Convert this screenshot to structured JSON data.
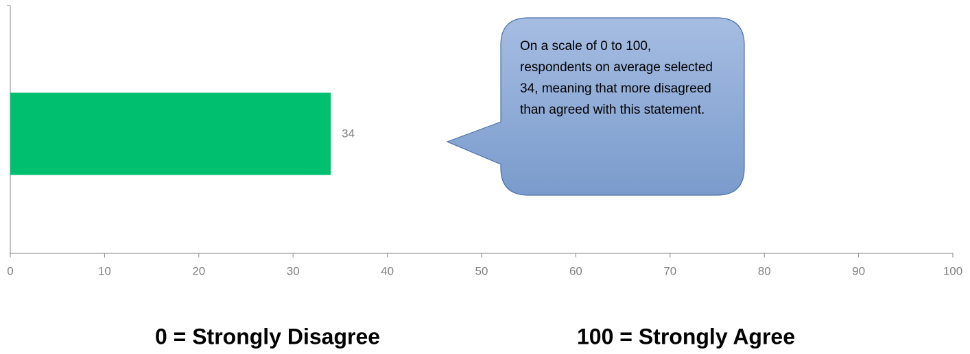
{
  "chart_data": {
    "type": "bar",
    "orientation": "horizontal",
    "categories": [
      null
    ],
    "values": [
      34
    ],
    "color": "#00bf6f",
    "xlim": [
      0,
      100
    ],
    "xticks": [
      0,
      10,
      20,
      30,
      40,
      50,
      60,
      70,
      80,
      90,
      100
    ],
    "grid": false,
    "annotation": "On a scale of 0 to 100, respondents on average selected 34, meaning that more disagreed than agreed with this statement.",
    "footer_left": "0 = Strongly Disagree",
    "footer_right": "100 = Strongly Agree"
  }
}
